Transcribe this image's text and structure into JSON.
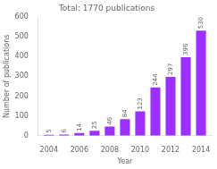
{
  "chart_data": {
    "type": "bar",
    "title": "Total: 1770 publications",
    "x": [
      2004,
      2005,
      2006,
      2007,
      2008,
      2009,
      2010,
      2011,
      2012,
      2013,
      2014
    ],
    "values": [
      5,
      6,
      14,
      25,
      46,
      84,
      123,
      244,
      297,
      396,
      530
    ],
    "color": "#9B30FF",
    "xlabel": "Year",
    "ylabel": "Number of publications",
    "xlim": [
      2003.3,
      2014.7
    ],
    "xticks": [
      2004,
      2006,
      2008,
      2010,
      2012,
      2014
    ],
    "ylim": [
      0,
      600
    ],
    "yticks": [
      0,
      100,
      200,
      300,
      400,
      500,
      600
    ],
    "grid": false,
    "data_labels": true
  }
}
